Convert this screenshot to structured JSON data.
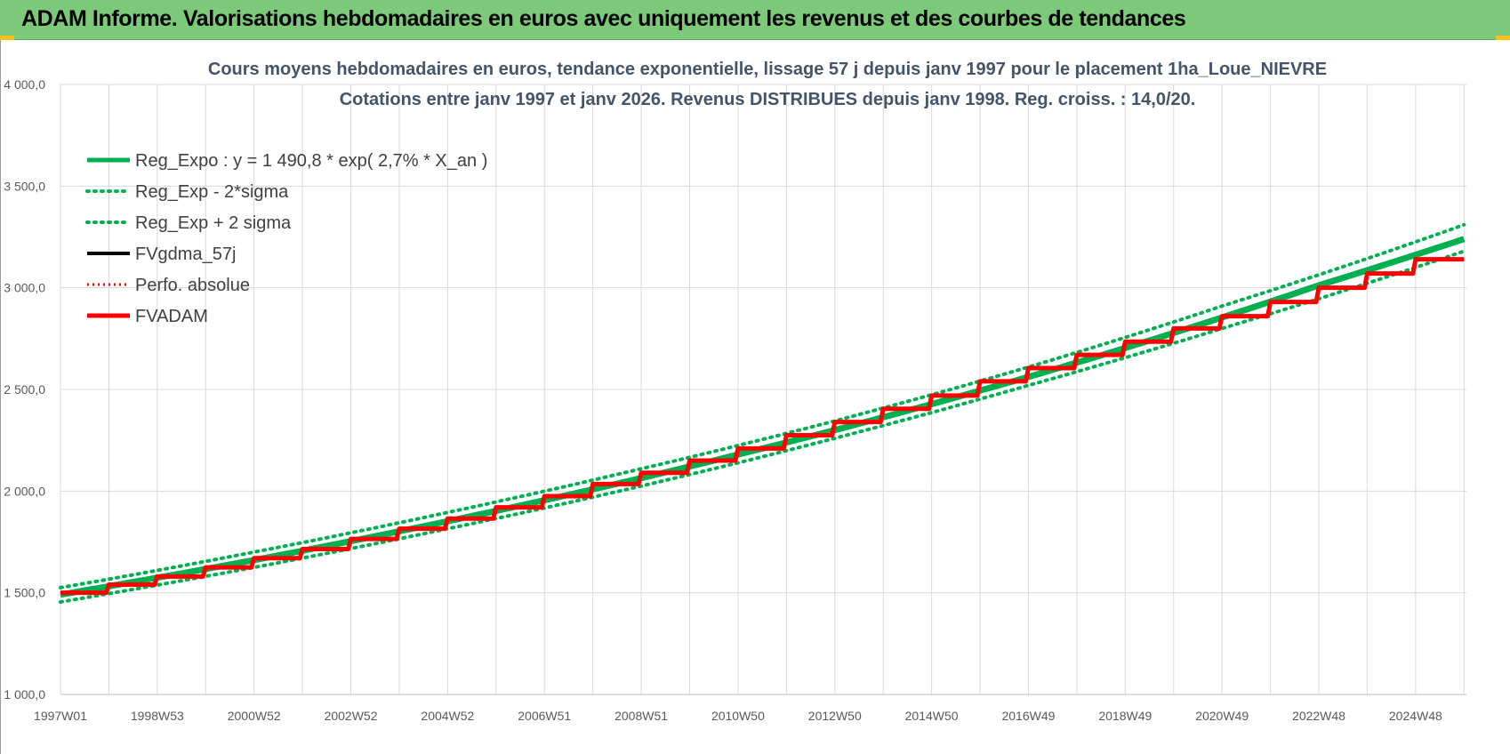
{
  "banner": {
    "title": "ADAM Informe. Valorisations hebdomadaires en euros avec uniquement les revenus et des courbes de tendances"
  },
  "colors": {
    "banner_bg": "#7dc97a",
    "green": "#00b050",
    "black": "#000000",
    "red": "#ff0000"
  },
  "chart_data": {
    "type": "line",
    "title": "Cours moyens hebdomadaires en euros, tendance exponentielle, lissage 57 j depuis janv 1997 pour le placement 1ha_Loue_NIEVRE",
    "subtitle": "Cotations entre janv 1997 et janv 2026. Revenus DISTRIBUES depuis janv 1998. Reg. croiss. : 14,0/20.",
    "xlabel": "",
    "ylabel": "",
    "x_tick_labels": [
      "1997W01",
      "1998W53",
      "2000W52",
      "2002W52",
      "2004W52",
      "2006W51",
      "2008W51",
      "2010W50",
      "2012W50",
      "2014W50",
      "2016W49",
      "2018W49",
      "2020W49",
      "2022W48",
      "2024W48"
    ],
    "y_tick_labels": [
      "1 000,0",
      "1 500,0",
      "2 000,0",
      "2 500,0",
      "3 000,0",
      "3 500,0",
      "4 000,0"
    ],
    "ylim": [
      1000,
      4000
    ],
    "xlim": [
      1997.0,
      2026.05
    ],
    "grid": true,
    "legend_position": "top-left",
    "legend": [
      "Reg_Expo : y = 1 490,8 * exp( 2,7% *  X_an )",
      "Reg_Exp - 2*sigma",
      "Reg_Exp + 2 sigma",
      "FVgdma_57j",
      "Perfo. absolue",
      "FVADAM"
    ],
    "series": [
      {
        "name": "Reg_Expo : y = 1 490,8 * exp( 2,7% *  X_an )",
        "style": "solid",
        "color": "#00b050",
        "x": [
          1997,
          1999,
          2001,
          2003,
          2005,
          2007,
          2009,
          2011,
          2013,
          2015,
          2017,
          2019,
          2021,
          2023,
          2026
        ],
        "values": [
          1491,
          1574,
          1661,
          1754,
          1852,
          1955,
          2064,
          2180,
          2300,
          2428,
          2562,
          2704,
          2854,
          3012,
          3240
        ]
      },
      {
        "name": "Reg_Exp - 2*sigma",
        "style": "dotted",
        "color": "#00b050",
        "x": [
          1997,
          2001,
          2005,
          2009,
          2013,
          2017,
          2021,
          2026
        ],
        "values": [
          1455,
          1625,
          1815,
          2025,
          2260,
          2520,
          2800,
          3180
        ]
      },
      {
        "name": "Reg_Exp + 2 sigma",
        "style": "dotted",
        "color": "#00b050",
        "x": [
          1997,
          2001,
          2005,
          2009,
          2013,
          2017,
          2021,
          2026
        ],
        "values": [
          1525,
          1700,
          1895,
          2110,
          2345,
          2610,
          2910,
          3310
        ]
      },
      {
        "name": "FVgdma_57j",
        "style": "solid",
        "color": "#000000",
        "x": [
          1997,
          1998,
          1999,
          2000,
          2001,
          2002,
          2003,
          2004,
          2005,
          2006,
          2007,
          2008,
          2009,
          2010,
          2011,
          2012,
          2013,
          2014,
          2015,
          2016,
          2017,
          2018,
          2019,
          2020,
          2021,
          2022,
          2023,
          2024,
          2025,
          2026
        ],
        "values": [
          1500,
          1540,
          1580,
          1625,
          1670,
          1715,
          1765,
          1815,
          1865,
          1920,
          1975,
          2035,
          2090,
          2150,
          2210,
          2275,
          2340,
          2405,
          2470,
          2540,
          2605,
          2670,
          2735,
          2800,
          2860,
          2930,
          3000,
          3070,
          3140,
          3140
        ]
      },
      {
        "name": "Perfo. absolue",
        "style": "dotted",
        "color": "#ff0000",
        "x": [
          1997,
          1998,
          1999,
          2000,
          2001,
          2002,
          2003,
          2004,
          2005,
          2006,
          2007,
          2008,
          2009,
          2010,
          2011,
          2012,
          2013,
          2014,
          2015,
          2016,
          2017,
          2018,
          2019,
          2020,
          2021,
          2022,
          2023,
          2024,
          2025,
          2026
        ],
        "values": [
          1500,
          1540,
          1580,
          1625,
          1670,
          1715,
          1765,
          1815,
          1865,
          1920,
          1975,
          2035,
          2090,
          2150,
          2210,
          2275,
          2340,
          2405,
          2470,
          2540,
          2605,
          2670,
          2735,
          2800,
          2860,
          2930,
          3000,
          3070,
          3140,
          3140
        ]
      },
      {
        "name": "FVADAM",
        "style": "solid",
        "color": "#ff0000",
        "x": [
          1997,
          1998,
          1999,
          2000,
          2001,
          2002,
          2003,
          2004,
          2005,
          2006,
          2007,
          2008,
          2009,
          2010,
          2011,
          2012,
          2013,
          2014,
          2015,
          2016,
          2017,
          2018,
          2019,
          2020,
          2021,
          2022,
          2023,
          2024,
          2025,
          2026
        ],
        "values": [
          1500,
          1540,
          1580,
          1625,
          1670,
          1715,
          1765,
          1815,
          1865,
          1920,
          1975,
          2035,
          2090,
          2150,
          2210,
          2275,
          2340,
          2405,
          2470,
          2540,
          2605,
          2670,
          2735,
          2800,
          2860,
          2930,
          3000,
          3070,
          3140,
          3140
        ]
      }
    ]
  }
}
